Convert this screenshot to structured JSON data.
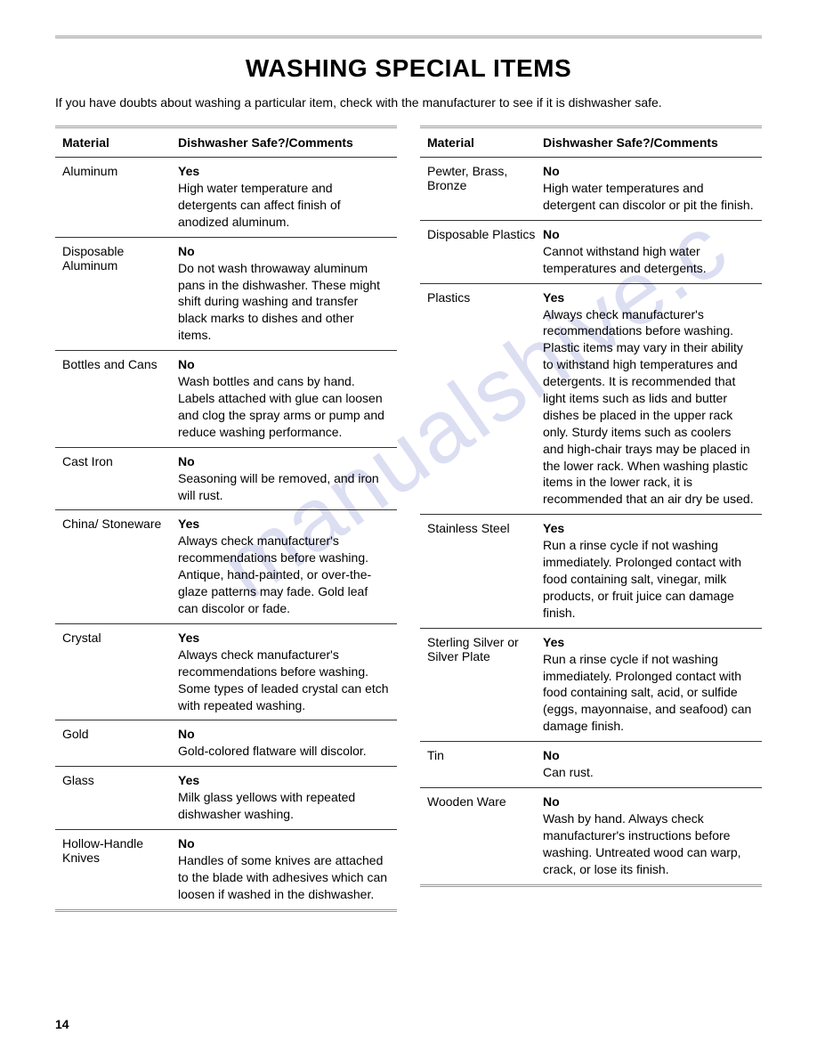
{
  "title": "WASHING SPECIAL ITEMS",
  "intro": "If you have doubts about washing a particular item, check with the manufacturer to see if it is dishwasher safe.",
  "header_material": "Material",
  "header_comments": "Dishwasher Safe?/Comments",
  "page_number": "14",
  "watermark": "manualshive.c",
  "left_column": [
    {
      "material": "Aluminum",
      "safe": "Yes",
      "comment": "High water temperature and detergents can affect finish of anodized aluminum."
    },
    {
      "material": "Disposable Aluminum",
      "safe": "No",
      "comment": "Do not wash throwaway aluminum pans in the dishwasher. These might shift during washing and transfer black marks to dishes and other items."
    },
    {
      "material": "Bottles and Cans",
      "safe": "No",
      "comment": "Wash bottles and cans by hand. Labels attached with glue can loosen and clog the spray arms or pump and reduce washing performance."
    },
    {
      "material": "Cast Iron",
      "safe": "No",
      "comment": "Seasoning will be removed, and iron will rust."
    },
    {
      "material": "China/ Stoneware",
      "safe": "Yes",
      "comment": "Always check manufacturer's recommendations before washing. Antique, hand-painted, or over-the-glaze patterns may fade. Gold leaf can discolor or fade."
    },
    {
      "material": "Crystal",
      "safe": "Yes",
      "comment": "Always check manufacturer's recommendations before washing. Some types of leaded crystal can etch with repeated washing."
    },
    {
      "material": "Gold",
      "safe": "No",
      "comment": "Gold-colored flatware will discolor."
    },
    {
      "material": "Glass",
      "safe": "Yes",
      "comment": "Milk glass yellows with repeated dishwasher washing."
    },
    {
      "material": "Hollow-Handle Knives",
      "safe": "No",
      "comment": "Handles of some knives are attached to the blade with adhesives which can loosen if washed in the dishwasher."
    }
  ],
  "right_column": [
    {
      "material": "Pewter, Brass, Bronze",
      "safe": "No",
      "comment": "High water temperatures and detergent can discolor or pit the finish."
    },
    {
      "material": "Disposable Plastics",
      "safe": "No",
      "comment": "Cannot withstand high water temperatures and detergents."
    },
    {
      "material": "Plastics",
      "safe": "Yes",
      "comment": "Always check manufacturer's recommendations before washing. Plastic items may vary in their ability to withstand high temperatures and detergents. It is recommended that light items such as lids and butter dishes be placed in the upper rack only. Sturdy items such as coolers and high-chair trays may be placed in the lower rack. When washing plastic items in the lower rack, it is recommended that an air dry be used."
    },
    {
      "material": "Stainless Steel",
      "safe": "Yes",
      "comment": "Run a rinse cycle if not washing immediately. Prolonged contact with food containing salt, vinegar, milk products, or fruit juice can damage finish."
    },
    {
      "material": "Sterling Silver or Silver Plate",
      "safe": "Yes",
      "comment": "Run a rinse cycle if not washing immediately. Prolonged contact with food containing salt, acid, or sulfide (eggs, mayonnaise, and seafood) can damage finish."
    },
    {
      "material": "Tin",
      "safe": "No",
      "comment": "Can rust."
    },
    {
      "material": "Wooden Ware",
      "safe": "No",
      "comment": "Wash by hand. Always check manufacturer's instructions before washing. Untreated wood can warp, crack, or lose its finish."
    }
  ]
}
